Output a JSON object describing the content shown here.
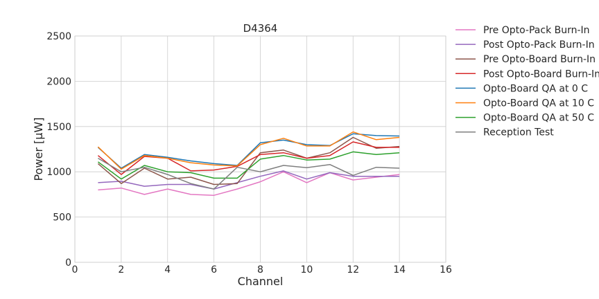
{
  "chart_data": {
    "type": "line",
    "title": "D4364",
    "xlabel": "Channel",
    "ylabel": "Power [μW]",
    "xlim": [
      0,
      16
    ],
    "ylim": [
      0,
      2500
    ],
    "xticks": [
      "0",
      "2",
      "4",
      "6",
      "8",
      "10",
      "12",
      "14",
      "16"
    ],
    "yticks": [
      "0",
      "500",
      "1000",
      "1500",
      "2000",
      "2500"
    ],
    "grid": true,
    "legend_position": "outside-right",
    "x": [
      1,
      2,
      3,
      4,
      5,
      6,
      7,
      8,
      9,
      10,
      11,
      12,
      13,
      14
    ],
    "series": [
      {
        "name": "Pre Opto-Pack Burn-In",
        "color": "#e377c2",
        "values": [
          800,
          820,
          750,
          810,
          750,
          740,
          810,
          890,
          1000,
          880,
          990,
          910,
          940,
          970
        ]
      },
      {
        "name": "Post Opto-Pack Burn-In",
        "color": "#9467bd",
        "values": [
          880,
          895,
          840,
          860,
          860,
          810,
          880,
          950,
          1010,
          920,
          990,
          950,
          950,
          950
        ]
      },
      {
        "name": "Pre Opto-Board Burn-In",
        "color": "#8c564b",
        "values": [
          1090,
          870,
          1040,
          920,
          940,
          860,
          870,
          1210,
          1240,
          1150,
          1210,
          1380,
          1260,
          1280
        ]
      },
      {
        "name": "Post Opto-Board Burn-In",
        "color": "#d62728",
        "values": [
          1180,
          970,
          1170,
          1150,
          1010,
          1020,
          1060,
          1190,
          1210,
          1150,
          1180,
          1330,
          1270,
          1270
        ]
      },
      {
        "name": "Opto-Board QA at 0 C",
        "color": "#1f77b4",
        "values": [
          1270,
          1040,
          1190,
          1160,
          1120,
          1090,
          1070,
          1320,
          1350,
          1300,
          1290,
          1420,
          1400,
          1395
        ]
      },
      {
        "name": "Opto-Board QA at 10 C",
        "color": "#ff7f0e",
        "values": [
          1275,
          1030,
          1180,
          1150,
          1100,
          1075,
          1065,
          1300,
          1370,
          1285,
          1285,
          1440,
          1355,
          1380
        ]
      },
      {
        "name": "Opto-Board QA at 50 C",
        "color": "#2ca02c",
        "values": [
          1110,
          920,
          1070,
          1000,
          990,
          930,
          930,
          1140,
          1180,
          1130,
          1140,
          1220,
          1190,
          1210
        ]
      },
      {
        "name": "Reception Test",
        "color": "#7f7f7f",
        "values": [
          1150,
          1000,
          1050,
          970,
          870,
          810,
          1050,
          1000,
          1070,
          1045,
          1080,
          960,
          1050,
          1040
        ]
      }
    ]
  }
}
